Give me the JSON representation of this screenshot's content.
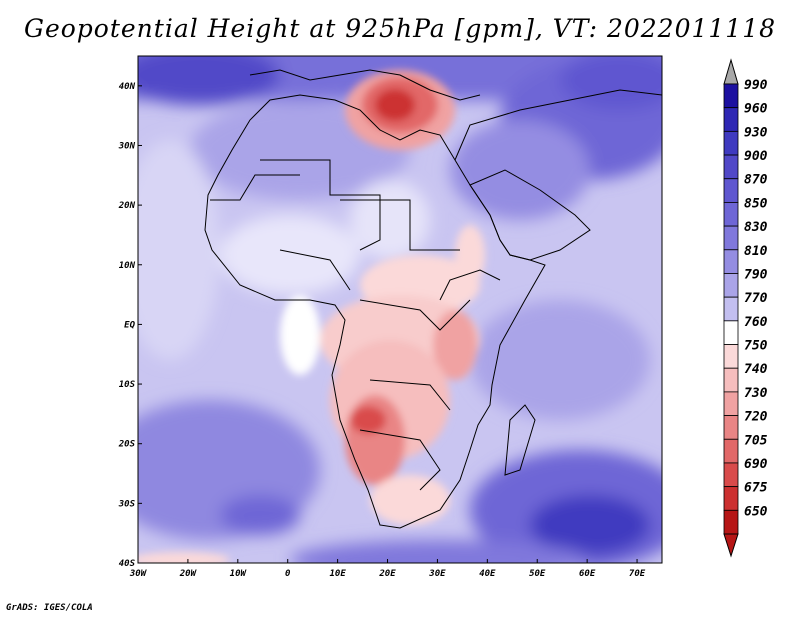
{
  "title": "Geopotential Height at 925hPa [gpm], VT: 2022011118",
  "credit": "GrADS: IGES/COLA",
  "map": {
    "lat_labels": [
      "40N",
      "30N",
      "20N",
      "10N",
      "EQ",
      "10S",
      "20S",
      "30S",
      "40S"
    ],
    "lat_values": [
      40,
      30,
      20,
      10,
      0,
      -10,
      -20,
      -30,
      -40
    ],
    "lon_labels": [
      "30W",
      "20W",
      "10W",
      "0",
      "10E",
      "20E",
      "30E",
      "40E",
      "50E",
      "60E",
      "70E"
    ],
    "lon_values": [
      -30,
      -20,
      -10,
      0,
      10,
      20,
      30,
      40,
      50,
      60,
      70
    ],
    "lon_range": [
      -30,
      75
    ],
    "lat_range": [
      -40,
      45
    ]
  },
  "colorbar": {
    "labels": [
      "990",
      "960",
      "930",
      "900",
      "870",
      "850",
      "830",
      "810",
      "790",
      "770",
      "760",
      "750",
      "740",
      "730",
      "720",
      "705",
      "690",
      "675",
      "650"
    ],
    "colors": [
      "#1c10a0",
      "#2e27b4",
      "#3f3ac0",
      "#5148c8",
      "#5f57d0",
      "#6e66d6",
      "#8078dc",
      "#948de2",
      "#aaa4e8",
      "#c3bff0",
      "#ffffff",
      "#fbd9d9",
      "#f6bebe",
      "#f0a2a2",
      "#e98585",
      "#e26868",
      "#d94b4b",
      "#cc3030",
      "#b61616"
    ],
    "over_color": "#a8a8a8"
  },
  "features": {
    "mediterranean_high_center": "low anomaly over Libya",
    "southern_ocean_high": "high over southern Indian Ocean"
  }
}
